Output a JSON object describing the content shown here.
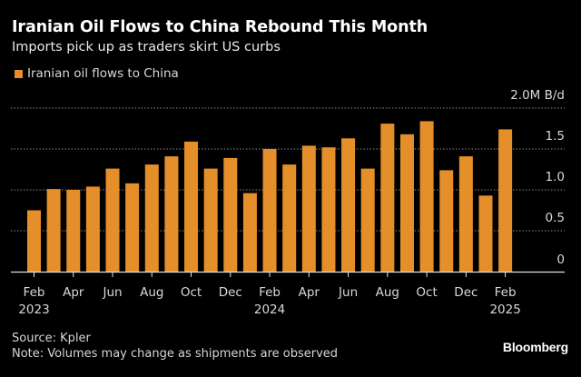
{
  "header": {
    "title": "Iranian Oil Flows to China Rebound This Month",
    "subtitle": "Imports pick up as traders skirt US curbs"
  },
  "legend": {
    "label": "Iranian oil flows to China",
    "color": "#e48f2a"
  },
  "footer": {
    "source": "Source: Kpler",
    "note": "Note: Volumes may change as shipments are observed",
    "brand": "Bloomberg"
  },
  "chart_data": {
    "type": "bar",
    "title": "Iranian Oil Flows to China Rebound This Month",
    "subtitle": "Imports pick up as traders skirt US curbs",
    "xlabel": "",
    "ylabel": "M B/d",
    "ylim": [
      0,
      2.0
    ],
    "grid": true,
    "legend_position": "top-left",
    "y_axis_side": "right",
    "y_ticks": [
      {
        "value": 0,
        "label": "0"
      },
      {
        "value": 0.5,
        "label": "0.5"
      },
      {
        "value": 1.0,
        "label": "1.0"
      },
      {
        "value": 1.5,
        "label": "1.5"
      },
      {
        "value": 2.0,
        "label": "2.0M B/d"
      }
    ],
    "categories": [
      "2023-02",
      "2023-03",
      "2023-04",
      "2023-05",
      "2023-06",
      "2023-07",
      "2023-08",
      "2023-09",
      "2023-10",
      "2023-11",
      "2023-12",
      "2024-01",
      "2024-02",
      "2024-03",
      "2024-04",
      "2024-05",
      "2024-06",
      "2024-07",
      "2024-08",
      "2024-09",
      "2024-10",
      "2024-11",
      "2024-12",
      "2025-01",
      "2025-02"
    ],
    "x_ticks": [
      {
        "index": 0,
        "label": "Feb",
        "year": "2023"
      },
      {
        "index": 2,
        "label": "Apr",
        "year": ""
      },
      {
        "index": 4,
        "label": "Jun",
        "year": ""
      },
      {
        "index": 6,
        "label": "Aug",
        "year": ""
      },
      {
        "index": 8,
        "label": "Oct",
        "year": ""
      },
      {
        "index": 10,
        "label": "Dec",
        "year": ""
      },
      {
        "index": 12,
        "label": "Feb",
        "year": "2024"
      },
      {
        "index": 14,
        "label": "Apr",
        "year": ""
      },
      {
        "index": 16,
        "label": "Jun",
        "year": ""
      },
      {
        "index": 18,
        "label": "Aug",
        "year": ""
      },
      {
        "index": 20,
        "label": "Oct",
        "year": ""
      },
      {
        "index": 22,
        "label": "Dec",
        "year": ""
      },
      {
        "index": 24,
        "label": "Feb",
        "year": "2025"
      }
    ],
    "series": [
      {
        "name": "Iranian oil flows to China",
        "color": "#e48f2a",
        "values": [
          0.75,
          1.01,
          1.0,
          1.04,
          1.26,
          1.08,
          1.31,
          1.41,
          1.59,
          1.26,
          1.39,
          0.96,
          1.5,
          1.31,
          1.54,
          1.52,
          1.63,
          1.26,
          1.81,
          1.68,
          1.84,
          1.24,
          1.41,
          0.93,
          1.74
        ]
      }
    ]
  }
}
